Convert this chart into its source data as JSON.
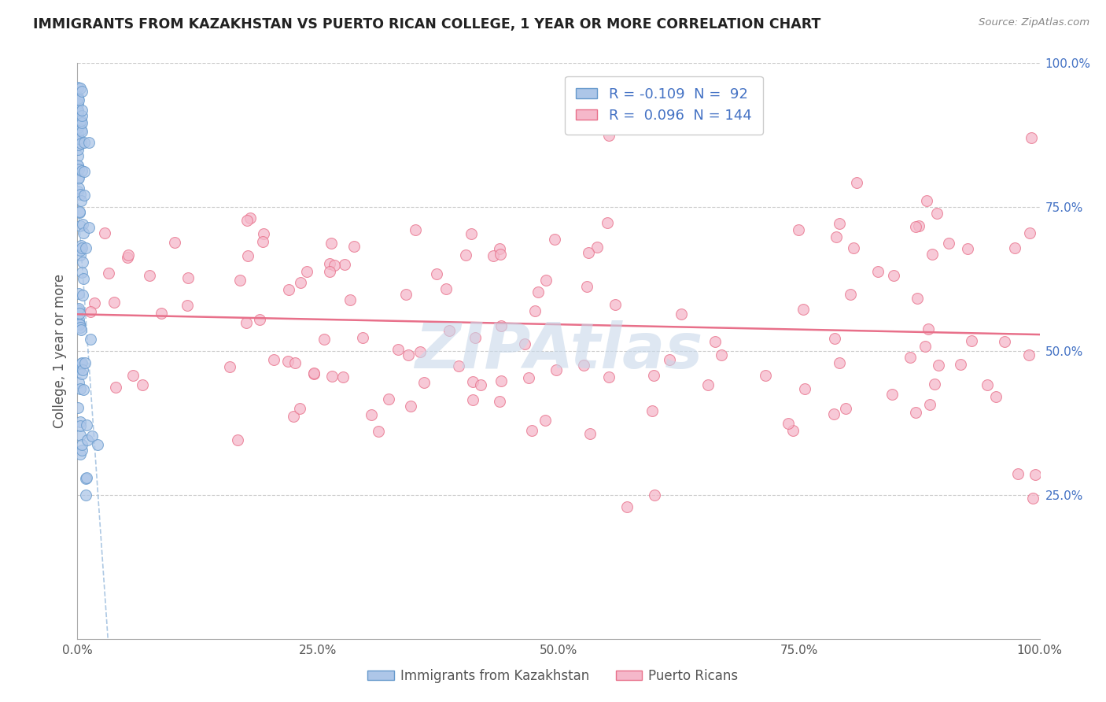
{
  "title": "IMMIGRANTS FROM KAZAKHSTAN VS PUERTO RICAN COLLEGE, 1 YEAR OR MORE CORRELATION CHART",
  "source": "Source: ZipAtlas.com",
  "ylabel": "College, 1 year or more",
  "xlim": [
    0,
    100
  ],
  "ylim": [
    0,
    100
  ],
  "x_tick_labels": [
    "0.0%",
    "25.0%",
    "50.0%",
    "75.0%",
    "100.0%"
  ],
  "x_tick_vals": [
    0,
    25,
    50,
    75,
    100
  ],
  "y_tick_labels": [
    "25.0%",
    "50.0%",
    "75.0%",
    "100.0%"
  ],
  "y_tick_vals": [
    25,
    50,
    75,
    100
  ],
  "legend_blue_label": "R = -0.109  N =  92",
  "legend_pink_label": "R =  0.096  N = 144",
  "blue_R": -0.109,
  "blue_N": 92,
  "pink_R": 0.096,
  "pink_N": 144,
  "blue_color": "#adc6e8",
  "blue_edge_color": "#6699cc",
  "pink_color": "#f5b8ca",
  "pink_edge_color": "#e8708a",
  "blue_trend_color": "#99bbdd",
  "pink_trend_color": "#e8708a",
  "legend_text_color": "#4472c4",
  "right_tick_color": "#4472c4",
  "watermark": "ZIPAtlas",
  "watermark_color": "#c8d8ea",
  "background_color": "#ffffff",
  "grid_color": "#cccccc",
  "blue_seed": 101,
  "pink_seed": 202
}
